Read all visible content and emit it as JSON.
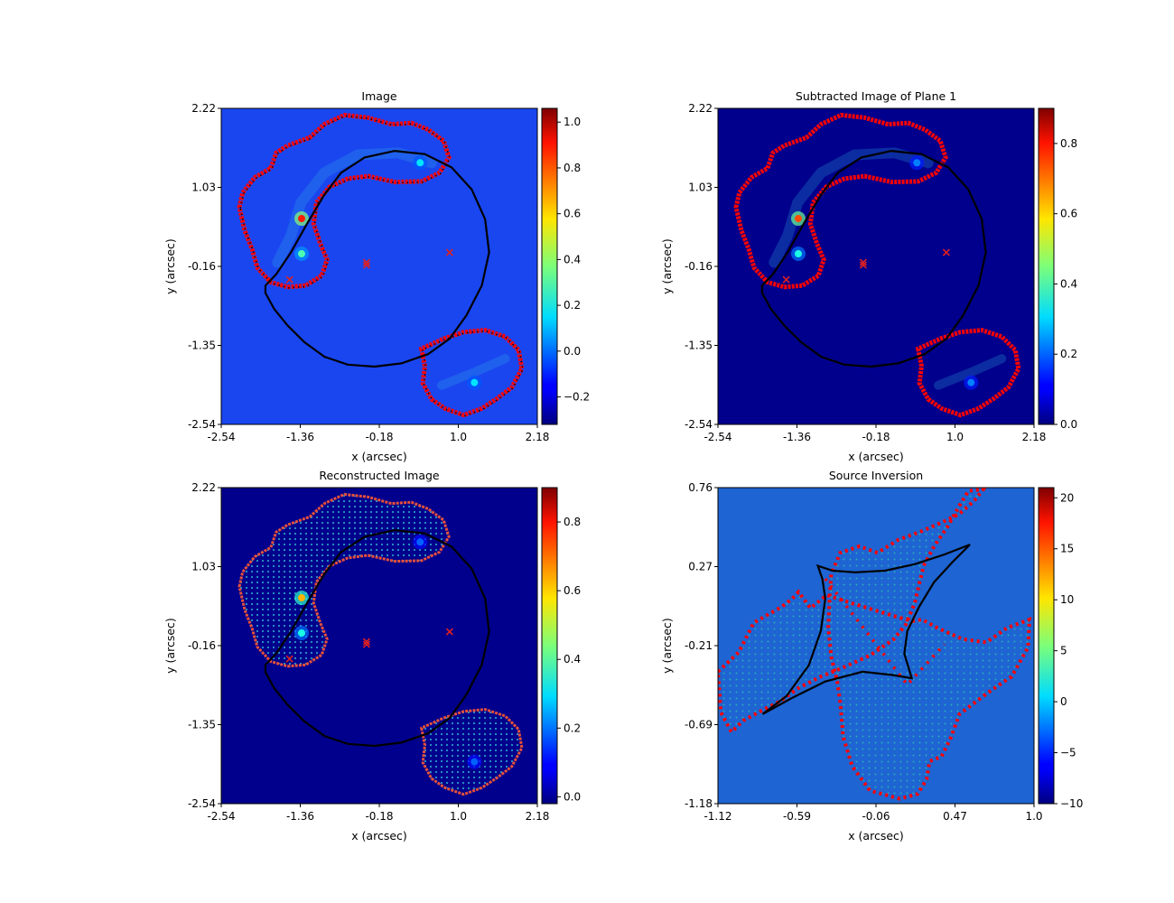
{
  "chart_data": [
    {
      "type": "heatmap",
      "title": "Image",
      "xlabel": "x (arcsec)",
      "ylabel": "y (arcsec)",
      "xlim": [
        -2.54,
        2.18
      ],
      "ylim": [
        -2.54,
        2.22
      ],
      "xticks": [
        "-2.54",
        "-1.36",
        "-0.18",
        "1.0",
        "2.18"
      ],
      "yticks": [
        "-2.54",
        "-1.35",
        "-0.16",
        "1.03",
        "2.22"
      ],
      "colorbar": {
        "min": -0.32,
        "max": 1.06,
        "ticks": [
          "−0.2",
          "0.0",
          "0.2",
          "0.4",
          "0.6",
          "0.8",
          "1.0"
        ],
        "tick_values": [
          -0.2,
          0,
          0.2,
          0.4,
          0.6,
          0.8,
          1.0
        ]
      },
      "background_color": "#1a46f0",
      "mask_edge_color": "#ff0000",
      "has_border_dots": true,
      "bright_spots": [
        {
          "x": -1.34,
          "y": 0.56,
          "level": 0.85
        },
        {
          "x": -1.34,
          "y": 0.03,
          "level": 0.45
        },
        {
          "x": 0.43,
          "y": 1.4,
          "level": 0.35
        },
        {
          "x": 1.24,
          "y": -1.91,
          "level": 0.35
        }
      ],
      "markers": [
        {
          "x": -0.37,
          "y": -0.1
        },
        {
          "x": -0.37,
          "y": -0.14
        },
        {
          "x": 0.87,
          "y": 0.05
        },
        {
          "x": -1.52,
          "y": -0.36
        }
      ]
    },
    {
      "type": "heatmap",
      "title": "Subtracted Image of Plane 1",
      "xlabel": "x (arcsec)",
      "ylabel": "y (arcsec)",
      "xlim": [
        -2.54,
        2.18
      ],
      "ylim": [
        -2.54,
        2.22
      ],
      "xticks": [
        "-2.54",
        "-1.36",
        "-0.18",
        "1.0",
        "2.18"
      ],
      "yticks": [
        "-2.54",
        "-1.35",
        "-0.16",
        "1.03",
        "2.22"
      ],
      "colorbar": {
        "min": 0.0,
        "max": 0.9,
        "ticks": [
          "0.0",
          "0.2",
          "0.4",
          "0.6",
          "0.8"
        ],
        "tick_values": [
          0,
          0.2,
          0.4,
          0.6,
          0.8
        ]
      },
      "background_color": "#00008c",
      "mask_edge_color": "#ff0000",
      "has_border_dots": false,
      "bright_spots": [
        {
          "x": -1.34,
          "y": 0.56,
          "level": 0.8
        },
        {
          "x": -1.34,
          "y": 0.03,
          "level": 0.4
        },
        {
          "x": 0.43,
          "y": 1.4,
          "level": 0.25
        },
        {
          "x": 1.24,
          "y": -1.91,
          "level": 0.25
        }
      ],
      "markers": [
        {
          "x": -0.37,
          "y": -0.1
        },
        {
          "x": -0.37,
          "y": -0.14
        },
        {
          "x": 0.87,
          "y": 0.05
        },
        {
          "x": -1.52,
          "y": -0.36
        }
      ]
    },
    {
      "type": "heatmap",
      "title": "Reconstructed Image",
      "xlabel": "x (arcsec)",
      "ylabel": "y (arcsec)",
      "xlim": [
        -2.54,
        2.18
      ],
      "ylim": [
        -2.54,
        2.22
      ],
      "xticks": [
        "-2.54",
        "-1.36",
        "-0.18",
        "1.0",
        "2.18"
      ],
      "yticks": [
        "-2.54",
        "-1.35",
        "-0.16",
        "1.03",
        "2.22"
      ],
      "colorbar": {
        "min": -0.02,
        "max": 0.9,
        "ticks": [
          "0.0",
          "0.2",
          "0.4",
          "0.6",
          "0.8"
        ],
        "tick_values": [
          0,
          0.2,
          0.4,
          0.6,
          0.8
        ]
      },
      "background_color": "#00008c",
      "mask_edge_color": "#e8503a",
      "has_border_dots": false,
      "fill_grid": true,
      "bright_spots": [
        {
          "x": -1.34,
          "y": 0.56,
          "level": 0.7
        },
        {
          "x": -1.34,
          "y": 0.03,
          "level": 0.4
        },
        {
          "x": 0.43,
          "y": 1.4,
          "level": 0.22
        },
        {
          "x": 1.24,
          "y": -1.91,
          "level": 0.22
        }
      ],
      "markers": [
        {
          "x": -0.37,
          "y": -0.1
        },
        {
          "x": -0.37,
          "y": -0.14
        },
        {
          "x": 0.87,
          "y": 0.05
        },
        {
          "x": -1.52,
          "y": -0.36
        }
      ]
    },
    {
      "type": "scatter",
      "title": "Source Inversion",
      "xlabel": "x (arcsec)",
      "ylabel": "y (arcsec)",
      "xlim": [
        -1.12,
        1.0
      ],
      "ylim": [
        -1.18,
        0.76
      ],
      "xticks": [
        "-1.12",
        "-0.59",
        "-0.06",
        "0.47",
        "1.0"
      ],
      "yticks": [
        "-1.18",
        "-0.69",
        "-0.21",
        "0.27",
        "0.76"
      ],
      "colorbar": {
        "min": -10,
        "max": 21,
        "ticks": [
          "−10",
          "−5",
          "0",
          "5",
          "10",
          "15",
          "20"
        ],
        "tick_values": [
          -10,
          -5,
          0,
          5,
          10,
          15,
          20
        ]
      },
      "background_color": "#1e64d2",
      "caustic": [
        [
          0.57,
          0.41
        ],
        [
          0.45,
          0.3
        ],
        [
          0.33,
          0.18
        ],
        [
          0.23,
          0.03
        ],
        [
          0.15,
          -0.12
        ],
        [
          0.13,
          -0.26
        ],
        [
          0.18,
          -0.41
        ],
        [
          0.05,
          -0.39
        ],
        [
          -0.15,
          -0.37
        ],
        [
          -0.4,
          -0.43
        ],
        [
          -0.62,
          -0.53
        ],
        [
          -0.82,
          -0.63
        ],
        [
          -0.66,
          -0.52
        ],
        [
          -0.51,
          -0.33
        ],
        [
          -0.43,
          -0.12
        ],
        [
          -0.4,
          0.08
        ],
        [
          -0.42,
          0.2
        ],
        [
          -0.45,
          0.28
        ],
        [
          -0.35,
          0.25
        ],
        [
          -0.2,
          0.24
        ],
        [
          0.0,
          0.25
        ],
        [
          0.2,
          0.29
        ],
        [
          0.4,
          0.35
        ],
        [
          0.57,
          0.41
        ]
      ],
      "outline": [
        [
          -1.12,
          -0.37
        ],
        [
          -0.98,
          -0.25
        ],
        [
          -0.88,
          -0.07
        ],
        [
          -0.69,
          0.03
        ],
        [
          -0.62,
          0.08
        ],
        [
          -0.58,
          0.12
        ],
        [
          -0.5,
          0.02
        ],
        [
          -0.39,
          0.1
        ],
        [
          -0.22,
          0.05
        ],
        [
          0.03,
          -0.02
        ],
        [
          0.18,
          -0.06
        ],
        [
          0.25,
          -0.05
        ],
        [
          0.35,
          -0.1
        ],
        [
          0.52,
          -0.17
        ],
        [
          0.68,
          -0.19
        ],
        [
          0.82,
          -0.1
        ],
        [
          0.97,
          -0.05
        ],
        [
          0.96,
          -0.22
        ],
        [
          0.85,
          -0.4
        ],
        [
          0.72,
          -0.48
        ],
        [
          0.66,
          -0.52
        ],
        [
          0.5,
          -0.63
        ],
        [
          0.44,
          -0.78
        ],
        [
          0.38,
          -0.89
        ],
        [
          0.3,
          -0.92
        ],
        [
          0.28,
          -1.03
        ],
        [
          0.22,
          -1.12
        ],
        [
          0.1,
          -1.15
        ],
        [
          -0.1,
          -1.1
        ],
        [
          -0.22,
          -0.95
        ],
        [
          -0.28,
          -0.77
        ],
        [
          -0.3,
          -0.56
        ],
        [
          -0.32,
          -0.43
        ],
        [
          -0.36,
          -0.28
        ],
        [
          -0.38,
          -0.1
        ],
        [
          -0.37,
          0.1
        ],
        [
          -0.36,
          0.23
        ],
        [
          -0.3,
          0.36
        ],
        [
          -0.17,
          0.4
        ],
        [
          -0.05,
          0.36
        ],
        [
          0.09,
          0.44
        ],
        [
          0.24,
          0.49
        ],
        [
          0.39,
          0.55
        ],
        [
          0.5,
          0.6
        ],
        [
          0.6,
          0.68
        ],
        [
          0.66,
          0.75
        ],
        [
          0.56,
          0.74
        ],
        [
          0.5,
          0.65
        ],
        [
          0.42,
          0.52
        ],
        [
          0.33,
          0.4
        ],
        [
          0.26,
          0.28
        ],
        [
          0.23,
          0.17
        ],
        [
          0.2,
          0.05
        ],
        [
          0.14,
          -0.08
        ],
        [
          0.06,
          -0.17
        ],
        [
          -0.1,
          -0.27
        ],
        [
          -0.27,
          -0.34
        ],
        [
          -0.43,
          -0.4
        ],
        [
          -0.58,
          -0.47
        ],
        [
          -0.7,
          -0.55
        ],
        [
          -0.83,
          -0.61
        ],
        [
          -0.95,
          -0.67
        ],
        [
          -1.03,
          -0.74
        ],
        [
          -1.1,
          -0.62
        ]
      ]
    }
  ]
}
